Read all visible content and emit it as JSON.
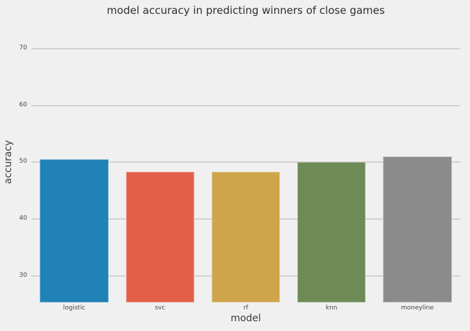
{
  "chart_data": {
    "type": "bar",
    "title": "model accuracy in predicting winners of close games",
    "xlabel": "model",
    "ylabel": "accuracy",
    "categories": [
      "logistic",
      "svc",
      "rf",
      "knn",
      "moneyline"
    ],
    "values": [
      50.5,
      48.4,
      48.3,
      50.1,
      51.0
    ],
    "yticks": [
      30,
      40,
      50,
      60,
      70
    ],
    "ylim": [
      25.3,
      73.1
    ],
    "bar_colors": [
      "#2082b6",
      "#e2604a",
      "#cfa54c",
      "#6e8b55",
      "#8b8b8b"
    ],
    "background_color": "#f0f0f0",
    "grid_color": "#d2d2d2",
    "title_color": "#2e2e2e",
    "axis_label_color": "#3c3c3c",
    "tick_label_color": "#474747",
    "grid": "on",
    "legend": "none",
    "bar_width_fraction": 0.8
  }
}
